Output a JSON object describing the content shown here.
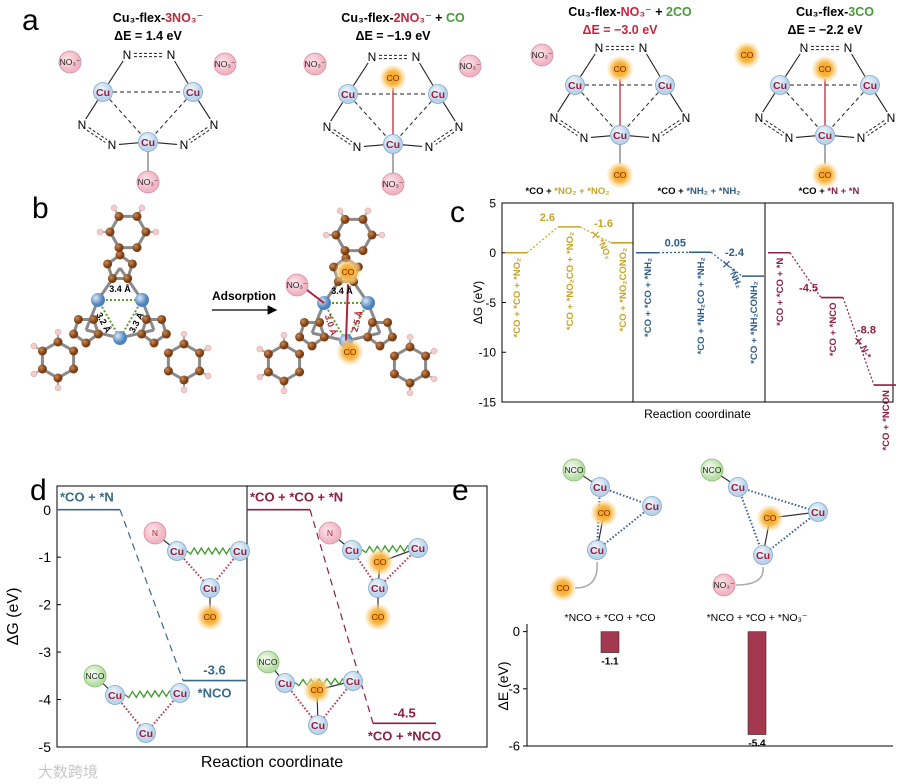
{
  "panel_labels": [
    "a",
    "b",
    "c",
    "d",
    "e"
  ],
  "panel_a": {
    "structures": [
      {
        "title": [
          {
            "text": "Cu₃-flex-"
          },
          {
            "text": "3NO₃⁻",
            "color": "#c0283c"
          }
        ],
        "energy": "ΔE = 1.4 eV",
        "atoms": [
          "Cu",
          "Cu",
          "Cu",
          "N",
          "N",
          "N",
          "N",
          "N",
          "N"
        ],
        "ligands": [
          "NO₃⁻",
          "NO₃⁻",
          "NO₃⁻"
        ]
      },
      {
        "title": [
          {
            "text": "Cu₃-flex-"
          },
          {
            "text": "2NO₃⁻",
            "color": "#c0283c"
          },
          {
            "text": " + "
          },
          {
            "text": "CO",
            "color": "#4a9a3a"
          }
        ],
        "energy": "ΔE = −1.9 eV",
        "atoms": [
          "Cu",
          "Cu",
          "Cu",
          "N",
          "N",
          "N",
          "N",
          "N",
          "N"
        ],
        "ligands": [
          "NO₃⁻",
          "CO",
          "NO₃⁻",
          "NO₃⁻"
        ]
      },
      {
        "title": [
          {
            "text": "Cu₃-flex-"
          },
          {
            "text": "NO₃⁻",
            "color": "#c0283c"
          },
          {
            "text": " + "
          },
          {
            "text": "2CO",
            "color": "#4a9a3a"
          }
        ],
        "energy": "ΔE = −3.0 eV",
        "energy_color": "#c0283c",
        "atoms": [
          "Cu",
          "Cu",
          "Cu",
          "N",
          "N",
          "N",
          "N",
          "N",
          "N"
        ],
        "ligands": [
          "NO₃⁻",
          "CO",
          "CO"
        ]
      },
      {
        "title": [
          {
            "text": "Cu₃-flex-"
          },
          {
            "text": "3CO",
            "color": "#4a9a3a"
          }
        ],
        "energy": "ΔE = −2.2 eV",
        "atoms": [
          "Cu",
          "Cu",
          "Cu",
          "N",
          "N",
          "N",
          "N",
          "N",
          "N"
        ],
        "ligands": [
          "CO",
          "CO",
          "CO"
        ]
      }
    ]
  },
  "panel_b": {
    "arrow_label": "Adsorption",
    "left": {
      "distances": [
        "3.4 Å",
        "3.2 Å",
        "3.3 Å"
      ]
    },
    "right": {
      "ligands": [
        "NO₃⁻",
        "CO",
        "CO"
      ],
      "distances": [
        "3.4 Å",
        "3.0 Å",
        "2.5 Å"
      ]
    }
  },
  "chart_data": [
    {
      "type": "profile",
      "ylabel": "ΔG (eV)",
      "xlabel": "Reaction coordinate",
      "ylim": [
        -15,
        5
      ],
      "yticks": [
        -15,
        -10,
        -5,
        0,
        5
      ],
      "series": [
        {
          "name": [
            {
              "text": "*CO + "
            },
            {
              "text": "*NO₂ + *NO₂",
              "color": "#c9a227"
            }
          ],
          "color": "#c9a227",
          "categories": [
            "*CO + *CO + *NO₂",
            "*CO + *NO₂CO + *NO₂",
            "*CO + *NO₂CONO₂"
          ],
          "values": [
            0,
            2.6,
            1
          ],
          "annotations": [
            "-1.6"
          ],
          "transition": "*NO₂"
        },
        {
          "name": [
            {
              "text": "*CO + "
            },
            {
              "text": "*NH₂ + *NH₂",
              "color": "#2e5d88"
            }
          ],
          "color": "#2e5d88",
          "categories": [
            "*CO + *CO + *NH₂",
            "*CO + *NH₂CO + *NH₂",
            "*CO + *NH₂CONH₂"
          ],
          "values": [
            0,
            0.05,
            -2.35
          ],
          "annotations": [
            "-2.4"
          ],
          "transition": "*NH₂"
        },
        {
          "name": [
            {
              "text": "*CO + "
            },
            {
              "text": "*N + *N",
              "color": "#8b1f3f"
            }
          ],
          "color": "#8b1f3f",
          "categories": [
            "*CO + *CO + *N",
            "*CO + *NCO",
            "*CO + *NCON"
          ],
          "values": [
            0,
            -4.5,
            -13.3
          ],
          "annotations": [
            "-8.8"
          ],
          "transition": "N-*"
        }
      ]
    },
    {
      "type": "profile",
      "ylabel": "ΔG (eV)",
      "xlabel": "Reaction coordinate",
      "ylim": [
        -5,
        0.5
      ],
      "yticks": [
        -5,
        -4,
        -3,
        -2,
        -1,
        0
      ],
      "series": [
        {
          "color": "#3a6a8a",
          "categories": [
            "*CO + *N",
            "*NCO"
          ],
          "values": [
            0,
            -3.6
          ]
        },
        {
          "color": "#8b1f3f",
          "categories": [
            "*CO + *CO + *N",
            "*CO + *NCO"
          ],
          "values": [
            0,
            -4.5
          ]
        }
      ],
      "insets": [
        {
          "labels": [
            "N",
            "Cu",
            "Cu",
            "Cu",
            "CO"
          ]
        },
        {
          "labels": [
            "NCO",
            "Cu",
            "Cu",
            "Cu"
          ]
        },
        {
          "labels": [
            "N",
            "Cu",
            "Cu",
            "CO",
            "Cu",
            "CO"
          ]
        },
        {
          "labels": [
            "NCO",
            "Cu",
            "Cu",
            "CO",
            "Cu"
          ]
        }
      ]
    },
    {
      "type": "bar",
      "ylabel": "ΔE (eV)",
      "categories": [
        "*NCO + *CO + *CO",
        "*NCO + *CO + *NO₃⁻"
      ],
      "values": [
        -1.1,
        -5.4
      ],
      "color": "#a3384e",
      "ylim": [
        -6,
        0.4
      ],
      "yticks": [
        -6,
        -3,
        0
      ],
      "structures": [
        {
          "labels": [
            "NCO",
            "Cu",
            "Cu",
            "CO",
            "Cu",
            "CO"
          ]
        },
        {
          "labels": [
            "NCO",
            "Cu",
            "Cu",
            "CO",
            "Cu",
            "NO₃⁻"
          ]
        }
      ]
    }
  ],
  "watermark": "大数跨境"
}
